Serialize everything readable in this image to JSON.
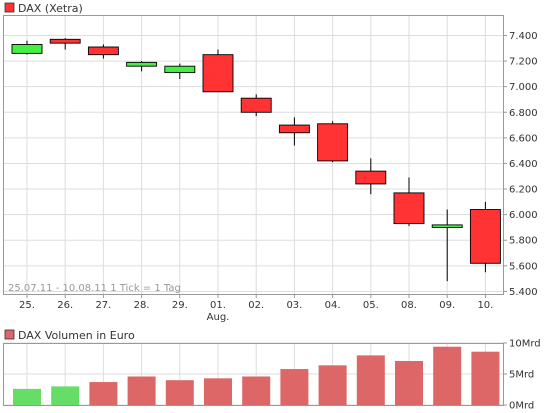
{
  "chart_data": [
    {
      "type": "candlestick",
      "title": "DAX (Xetra)",
      "annotation": "25.07.11 - 10.08.11    1 Tick = 1 Tag",
      "categories": [
        "25.",
        "26.",
        "27.",
        "28.",
        "29.",
        "01.",
        "02.",
        "03.",
        "04.",
        "05.",
        "08.",
        "09.",
        "10."
      ],
      "month_labels": [
        "",
        "",
        "",
        "",
        "",
        "Aug.",
        "",
        "",
        "",
        "",
        "",
        "",
        ""
      ],
      "series": [
        {
          "name": "DAX (Xetra)",
          "open": [
            7260,
            7370,
            7310,
            7160,
            7110,
            7250,
            6910,
            6700,
            6710,
            6340,
            6170,
            5900,
            6040
          ],
          "close": [
            7330,
            7340,
            7250,
            7190,
            7160,
            6960,
            6800,
            6640,
            6420,
            6240,
            5930,
            5920,
            5620
          ],
          "high": [
            7360,
            7380,
            7330,
            7200,
            7180,
            7290,
            6940,
            6760,
            6730,
            6440,
            6290,
            6040,
            6100
          ],
          "low": [
            7250,
            7290,
            7220,
            7120,
            7060,
            6960,
            6770,
            6540,
            6410,
            6160,
            5910,
            5480,
            5550
          ]
        }
      ],
      "yticks": [
        "5.400",
        "5.600",
        "5.800",
        "6.000",
        "6.200",
        "6.400",
        "6.600",
        "6.800",
        "7.000",
        "7.200",
        "7.400"
      ],
      "ylim": [
        5380,
        7560
      ],
      "grid": true,
      "legend_position": "top-left",
      "colors": {
        "up": "#44ee44",
        "down": "#ff3333",
        "grid": "#dddddd"
      }
    },
    {
      "type": "bar",
      "title": "DAX Volumen in Euro",
      "categories": [
        "25.",
        "26.",
        "27.",
        "28.",
        "29.",
        "01.",
        "02.",
        "03.",
        "04.",
        "05.",
        "08.",
        "09.",
        "10."
      ],
      "values": [
        2.6,
        3.0,
        3.7,
        4.6,
        4.0,
        4.3,
        4.6,
        5.8,
        6.4,
        8.0,
        7.1,
        9.4,
        8.6
      ],
      "unit": "Mrd",
      "yticks": [
        "0Mrd",
        "5Mrd",
        "10Mrd"
      ],
      "ylim": [
        0,
        10
      ],
      "grid": true,
      "colors": {
        "up": "#66dd66",
        "down": "#dd6666"
      },
      "bar_direction": [
        "up",
        "up",
        "down",
        "down",
        "down",
        "down",
        "down",
        "down",
        "down",
        "down",
        "down",
        "down",
        "down"
      ]
    }
  ]
}
